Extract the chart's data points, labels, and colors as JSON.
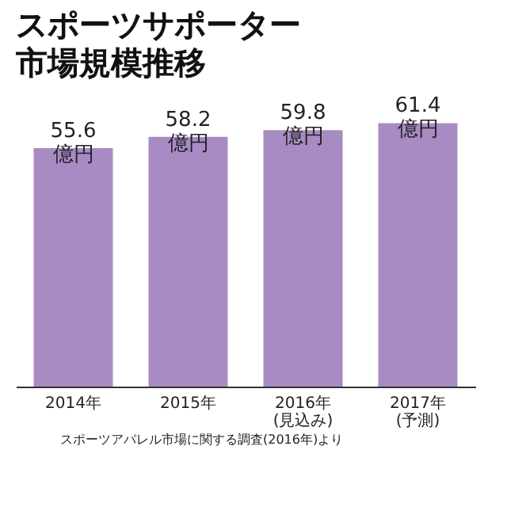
{
  "chart_data": {
    "type": "bar",
    "title": "スポーツサポーター市場規模推移",
    "categories": [
      "2014年",
      "2015年",
      "2016年\n(見込み)",
      "2017年\n(予測)"
    ],
    "values": [
      55.6,
      58.2,
      59.8,
      61.4
    ],
    "color": "#a98bc4",
    "value_labels": [
      "55.6\n億円",
      "58.2\n億円",
      "59.8\n億円",
      "61.4\n億円"
    ],
    "annotations": [
      "スポーツアパレル市場に関する調査(2016年)より"
    ]
  }
}
